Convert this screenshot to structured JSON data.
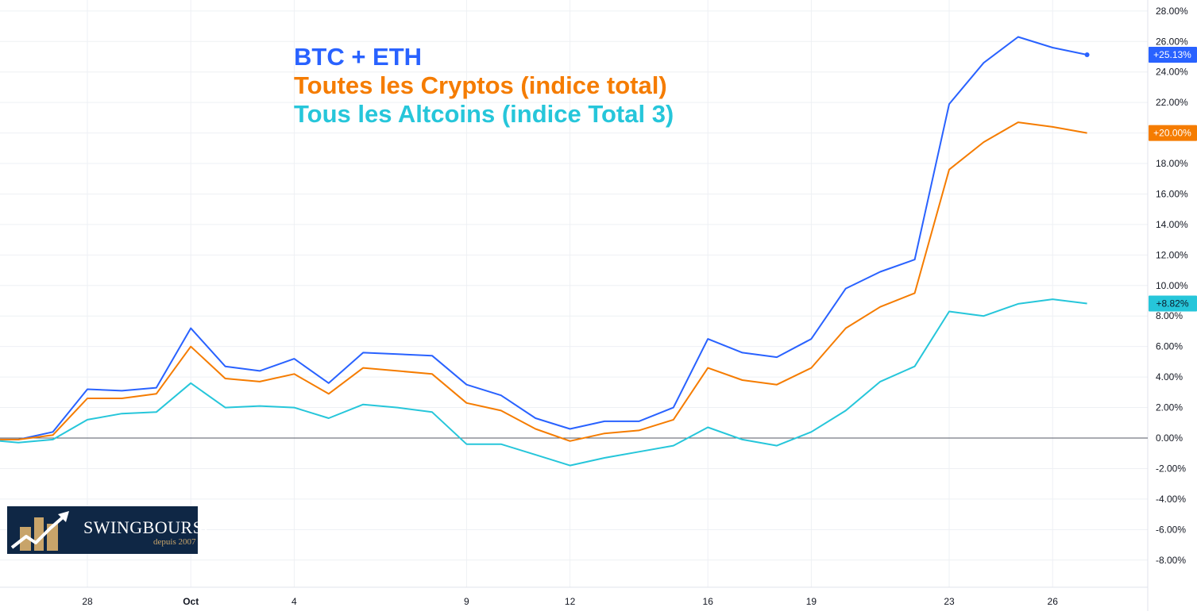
{
  "chart_data": {
    "type": "line",
    "x_tick_labels": [
      "28",
      "Oct",
      "4",
      "9",
      "12",
      "16",
      "19",
      "23",
      "26"
    ],
    "y_tick_labels": [
      "28.00%",
      "26.00%",
      "24.00%",
      "22.00%",
      "20.00%",
      "18.00%",
      "16.00%",
      "14.00%",
      "12.00%",
      "10.00%",
      "8.00%",
      "6.00%",
      "4.00%",
      "2.00%",
      "0.00%",
      "-2.00%",
      "-4.00%",
      "-6.00%",
      "-8.00%"
    ],
    "ylim": [
      -8,
      28
    ],
    "y_unit": "%",
    "grid": true,
    "zero_line": true,
    "x": [
      "Sep 25",
      "Sep 26",
      "Sep 27",
      "Sep 28",
      "Sep 29",
      "Sep 30",
      "Oct 1",
      "Oct 2",
      "Oct 3",
      "Oct 4",
      "Oct 5",
      "Oct 6",
      "Oct 7",
      "Oct 8",
      "Oct 9",
      "Oct 10",
      "Oct 11",
      "Oct 12",
      "Oct 13",
      "Oct 14",
      "Oct 15",
      "Oct 16",
      "Oct 17",
      "Oct 18",
      "Oct 19",
      "Oct 20",
      "Oct 21",
      "Oct 22",
      "Oct 23",
      "Oct 24",
      "Oct 25",
      "Oct 26",
      "Oct 27"
    ],
    "series": [
      {
        "name": "BTC + ETH",
        "color": "#2962ff",
        "last_value_label": "+25.13%",
        "values": [
          -0.1,
          -0.1,
          0.4,
          3.2,
          3.1,
          3.3,
          7.2,
          4.7,
          4.4,
          5.2,
          3.6,
          5.6,
          5.5,
          5.4,
          3.5,
          2.8,
          1.3,
          0.6,
          1.1,
          1.1,
          2.0,
          6.5,
          5.6,
          5.3,
          6.5,
          9.8,
          10.9,
          11.7,
          21.9,
          24.6,
          26.3,
          25.6,
          25.13
        ]
      },
      {
        "name": "Toutes les Cryptos (indice total)",
        "color": "#f57c00",
        "last_value_label": "+20.00%",
        "values": [
          -0.1,
          -0.1,
          0.2,
          2.6,
          2.6,
          2.9,
          6.0,
          3.9,
          3.7,
          4.2,
          2.9,
          4.6,
          4.4,
          4.2,
          2.3,
          1.8,
          0.6,
          -0.2,
          0.3,
          0.5,
          1.2,
          4.6,
          3.8,
          3.5,
          4.6,
          7.2,
          8.6,
          9.5,
          17.6,
          19.4,
          20.7,
          20.4,
          20.0
        ]
      },
      {
        "name": "Tous les Altcoins (indice Total 3)",
        "color": "#26c6da",
        "last_value_label": "+8.82%",
        "values": [
          -0.1,
          -0.3,
          -0.1,
          1.2,
          1.6,
          1.7,
          3.6,
          2.0,
          2.1,
          2.0,
          1.3,
          2.2,
          2.0,
          1.7,
          -0.4,
          -0.4,
          -1.1,
          -1.8,
          -1.3,
          -0.9,
          -0.5,
          0.7,
          -0.1,
          -0.5,
          0.4,
          1.8,
          3.7,
          4.7,
          8.3,
          8.0,
          8.8,
          9.1,
          8.82
        ]
      }
    ]
  },
  "logo": {
    "name": "SWINGBOURSE",
    "tagline": "depuis 2007",
    "bg_color": "#0f2745",
    "accent_color": "#c8a46a"
  }
}
